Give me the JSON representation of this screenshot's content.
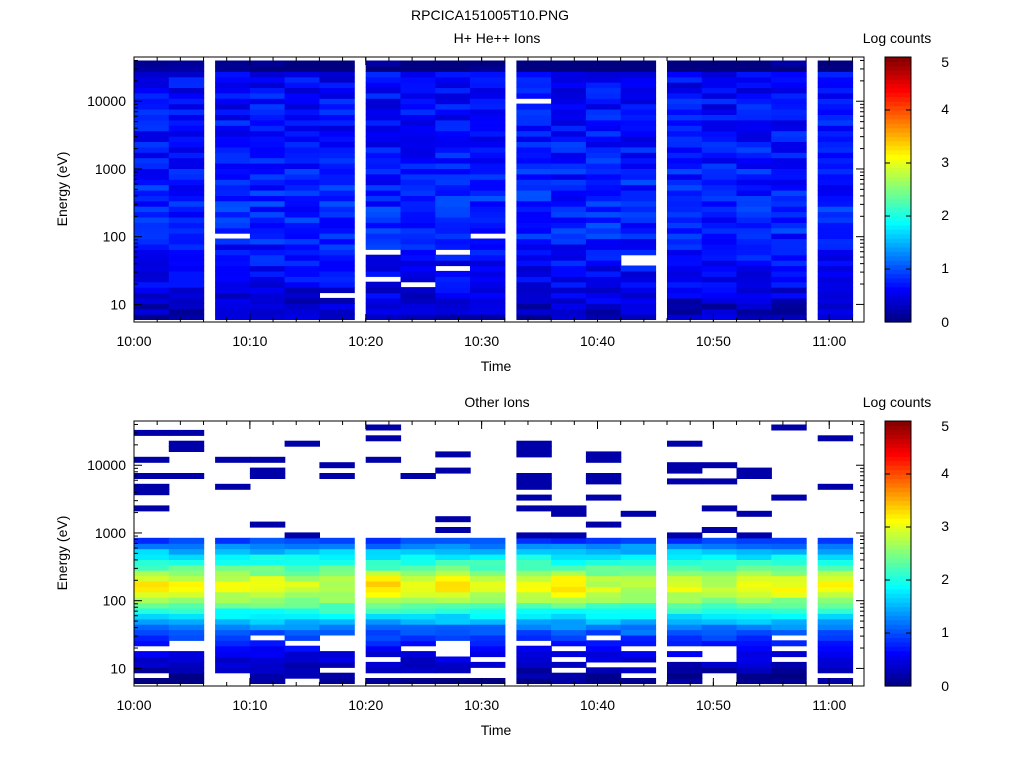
{
  "title": "RPCICA151005T10.PNG",
  "colorbar": {
    "label": "Log counts",
    "range": [
      0,
      5
    ],
    "ticks": [
      "0",
      "1",
      "2",
      "3",
      "4",
      "5"
    ],
    "colormap": "jet"
  },
  "chart_data": [
    {
      "type": "heatmap",
      "title": "H+ He++ Ions",
      "xlabel": "Time",
      "ylabel": "Energy (eV)",
      "x_ticks": [
        "10:00",
        "10:10",
        "10:20",
        "10:30",
        "10:40",
        "10:50",
        "11:00"
      ],
      "xlim": [
        "10:00",
        "11:03"
      ],
      "yscale": "log",
      "ylim": [
        5.5,
        45000
      ],
      "y_ticks": [
        "10",
        "100",
        "1000",
        "10000"
      ],
      "time_columns": [
        "10:01",
        "10:04",
        "10:08",
        "10:11",
        "10:14",
        "10:17",
        "10:21",
        "10:24",
        "10:27",
        "10:30",
        "10:34",
        "10:37",
        "10:40",
        "10:43",
        "10:47",
        "10:50",
        "10:53",
        "10:56",
        "11:00"
      ],
      "energy_profile_log_counts": {
        "energies_eV": [
          8,
          15,
          30,
          60,
          120,
          300,
          1000,
          3000,
          10000,
          30000
        ],
        "typical_log_counts": [
          0.3,
          0.5,
          0.6,
          0.7,
          0.8,
          0.8,
          0.75,
          0.7,
          0.65,
          0.6
        ]
      },
      "empty_bins": [
        {
          "time": "10:08",
          "energy_eV": 100
        },
        {
          "time": "10:17",
          "energy_eV": 14
        },
        {
          "time": "10:20",
          "energy_eV": 25
        },
        {
          "time": "10:20",
          "energy_eV": 55
        },
        {
          "time": "10:24",
          "energy_eV": 20
        },
        {
          "time": "10:27",
          "energy_eV": 35
        },
        {
          "time": "10:27",
          "energy_eV": 55
        },
        {
          "time": "10:30",
          "energy_eV": 100
        },
        {
          "time": "10:34",
          "energy_eV": 10000
        },
        {
          "time": "10:43",
          "energy_eV": 45
        }
      ],
      "clim": [
        0,
        5
      ]
    },
    {
      "type": "heatmap",
      "title": "Other Ions",
      "xlabel": "Time",
      "ylabel": "Energy (eV)",
      "x_ticks": [
        "10:00",
        "10:10",
        "10:20",
        "10:30",
        "10:40",
        "10:50",
        "11:00"
      ],
      "xlim": [
        "10:00",
        "11:03"
      ],
      "yscale": "log",
      "ylim": [
        5.5,
        45000
      ],
      "y_ticks": [
        "10",
        "100",
        "1000",
        "10000"
      ],
      "time_columns": [
        "10:01",
        "10:04",
        "10:08",
        "10:11",
        "10:14",
        "10:17",
        "10:21",
        "10:24",
        "10:27",
        "10:30",
        "10:34",
        "10:37",
        "10:40",
        "10:43",
        "10:47",
        "10:50",
        "10:53",
        "10:56",
        "11:00"
      ],
      "energy_profile_log_counts": {
        "energies_eV": [
          7,
          10,
          15,
          25,
          40,
          60,
          100,
          150,
          200,
          300,
          500,
          800
        ],
        "typical_log_counts": [
          0.1,
          0.3,
          0.5,
          0.8,
          1.2,
          1.8,
          2.5,
          2.8,
          2.7,
          2.3,
          1.7,
          0.9
        ]
      },
      "peak_energy_eV": 170,
      "peak_log_counts": 3.4,
      "sparse_high_energy_counts_log": 0.2,
      "clim": [
        0,
        5
      ]
    }
  ]
}
